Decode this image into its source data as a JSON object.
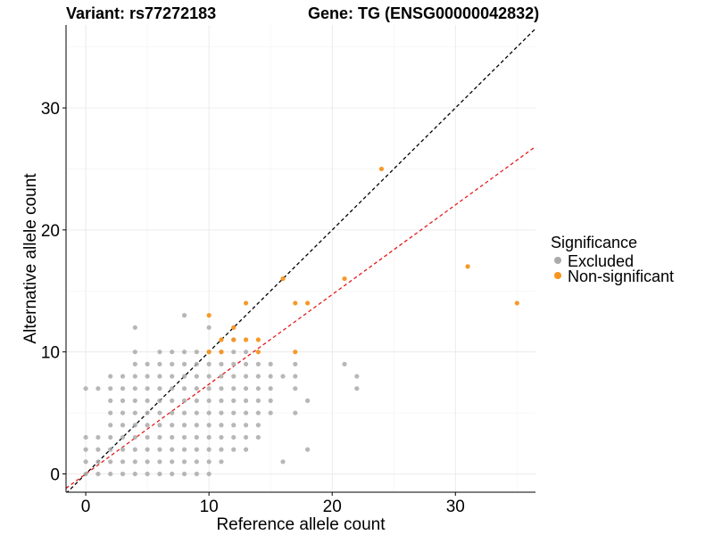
{
  "chart_data": {
    "type": "scatter",
    "title_left": "Variant: rs77272183",
    "title_right": "Gene: TG (ENSG00000042832)",
    "xlabel": "Reference allele count",
    "ylabel": "Alternative allele count",
    "xlim": [
      -1.6,
      36.5
    ],
    "ylim": [
      -1.5,
      36.8
    ],
    "xticks": [
      0,
      10,
      20,
      30
    ],
    "yticks": [
      0,
      10,
      20,
      30
    ],
    "grid": true,
    "legend": {
      "title": "Significance",
      "position": "right",
      "entries": [
        {
          "label": "Excluded",
          "color": "#aaaaaa"
        },
        {
          "label": "Non-significant",
          "color": "#f7941d"
        }
      ]
    },
    "reference_lines": [
      {
        "name": "identity",
        "slope": 1.0,
        "intercept": 0,
        "color": "#000000",
        "dash": true
      },
      {
        "name": "fit",
        "slope": 0.735,
        "intercept": 0,
        "color": "#e41a1c",
        "dash": true
      }
    ],
    "series": [
      {
        "name": "Excluded",
        "color": "#aaaaaa",
        "points": [
          [
            0,
            0
          ],
          [
            0,
            1
          ],
          [
            0,
            2
          ],
          [
            0,
            3
          ],
          [
            0,
            7
          ],
          [
            1,
            0
          ],
          [
            1,
            1
          ],
          [
            1,
            2
          ],
          [
            1,
            3
          ],
          [
            1,
            7
          ],
          [
            2,
            0
          ],
          [
            2,
            1
          ],
          [
            2,
            2
          ],
          [
            2,
            3
          ],
          [
            2,
            4
          ],
          [
            2,
            5
          ],
          [
            2,
            6
          ],
          [
            2,
            7
          ],
          [
            2,
            8
          ],
          [
            3,
            0
          ],
          [
            3,
            1
          ],
          [
            3,
            2
          ],
          [
            3,
            3
          ],
          [
            3,
            4
          ],
          [
            3,
            5
          ],
          [
            3,
            6
          ],
          [
            3,
            7
          ],
          [
            3,
            8
          ],
          [
            4,
            0
          ],
          [
            4,
            1
          ],
          [
            4,
            2
          ],
          [
            4,
            3
          ],
          [
            4,
            4
          ],
          [
            4,
            5
          ],
          [
            4,
            6
          ],
          [
            4,
            7
          ],
          [
            4,
            8
          ],
          [
            4,
            9
          ],
          [
            4,
            10
          ],
          [
            4,
            12
          ],
          [
            5,
            0
          ],
          [
            5,
            1
          ],
          [
            5,
            2
          ],
          [
            5,
            3
          ],
          [
            5,
            4
          ],
          [
            5,
            5
          ],
          [
            5,
            6
          ],
          [
            5,
            7
          ],
          [
            5,
            8
          ],
          [
            5,
            9
          ],
          [
            6,
            0
          ],
          [
            6,
            1
          ],
          [
            6,
            2
          ],
          [
            6,
            3
          ],
          [
            6,
            4
          ],
          [
            6,
            5
          ],
          [
            6,
            6
          ],
          [
            6,
            7
          ],
          [
            6,
            8
          ],
          [
            6,
            9
          ],
          [
            6,
            10
          ],
          [
            7,
            0
          ],
          [
            7,
            1
          ],
          [
            7,
            2
          ],
          [
            7,
            3
          ],
          [
            7,
            4
          ],
          [
            7,
            5
          ],
          [
            7,
            6
          ],
          [
            7,
            7
          ],
          [
            7,
            8
          ],
          [
            7,
            9
          ],
          [
            7,
            10
          ],
          [
            8,
            0
          ],
          [
            8,
            1
          ],
          [
            8,
            2
          ],
          [
            8,
            3
          ],
          [
            8,
            4
          ],
          [
            8,
            5
          ],
          [
            8,
            6
          ],
          [
            8,
            7
          ],
          [
            8,
            8
          ],
          [
            8,
            9
          ],
          [
            8,
            10
          ],
          [
            8,
            13
          ],
          [
            9,
            0
          ],
          [
            9,
            1
          ],
          [
            9,
            2
          ],
          [
            9,
            3
          ],
          [
            9,
            4
          ],
          [
            9,
            5
          ],
          [
            9,
            6
          ],
          [
            9,
            7
          ],
          [
            9,
            8
          ],
          [
            9,
            9
          ],
          [
            9,
            10
          ],
          [
            10,
            0
          ],
          [
            10,
            1
          ],
          [
            10,
            2
          ],
          [
            10,
            3
          ],
          [
            10,
            4
          ],
          [
            10,
            5
          ],
          [
            10,
            6
          ],
          [
            10,
            7
          ],
          [
            10,
            8
          ],
          [
            10,
            9
          ],
          [
            10,
            10
          ],
          [
            10,
            12
          ],
          [
            11,
            1
          ],
          [
            11,
            2
          ],
          [
            11,
            3
          ],
          [
            11,
            4
          ],
          [
            11,
            5
          ],
          [
            11,
            6
          ],
          [
            11,
            7
          ],
          [
            11,
            8
          ],
          [
            11,
            9
          ],
          [
            11,
            10
          ],
          [
            12,
            2
          ],
          [
            12,
            3
          ],
          [
            12,
            4
          ],
          [
            12,
            5
          ],
          [
            12,
            6
          ],
          [
            12,
            7
          ],
          [
            12,
            8
          ],
          [
            12,
            9
          ],
          [
            12,
            10
          ],
          [
            12,
            11
          ],
          [
            13,
            2
          ],
          [
            13,
            3
          ],
          [
            13,
            4
          ],
          [
            13,
            5
          ],
          [
            13,
            6
          ],
          [
            13,
            7
          ],
          [
            13,
            8
          ],
          [
            13,
            9
          ],
          [
            13,
            10
          ],
          [
            14,
            3
          ],
          [
            14,
            4
          ],
          [
            14,
            5
          ],
          [
            14,
            6
          ],
          [
            14,
            7
          ],
          [
            14,
            8
          ],
          [
            14,
            9
          ],
          [
            15,
            5
          ],
          [
            15,
            6
          ],
          [
            15,
            7
          ],
          [
            15,
            8
          ],
          [
            15,
            9
          ],
          [
            16,
            1
          ],
          [
            16,
            8
          ],
          [
            17,
            5
          ],
          [
            17,
            7
          ],
          [
            17,
            8
          ],
          [
            17,
            9
          ],
          [
            18,
            2
          ],
          [
            18,
            6
          ],
          [
            21,
            9
          ],
          [
            22,
            7
          ],
          [
            22,
            8
          ]
        ]
      },
      {
        "name": "Non-significant",
        "color": "#f7941d",
        "points": [
          [
            10,
            13
          ],
          [
            10,
            10
          ],
          [
            11,
            10
          ],
          [
            11,
            11
          ],
          [
            12,
            11
          ],
          [
            12,
            12
          ],
          [
            13,
            11
          ],
          [
            13,
            14
          ],
          [
            14,
            11
          ],
          [
            14,
            10
          ],
          [
            16,
            16
          ],
          [
            17,
            14
          ],
          [
            17,
            10
          ],
          [
            18,
            14
          ],
          [
            21,
            16
          ],
          [
            24,
            25
          ],
          [
            31,
            17
          ],
          [
            35,
            14
          ]
        ]
      }
    ]
  }
}
